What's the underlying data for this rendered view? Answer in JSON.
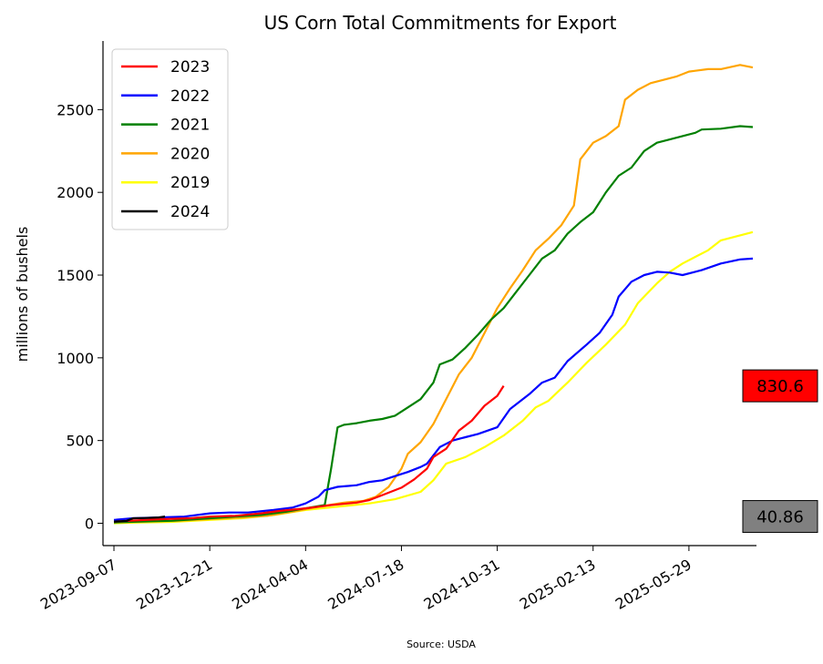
{
  "chart_data": {
    "type": "line",
    "title": "US Corn Total Commitments for Export",
    "xlabel": "",
    "ylabel": "millions of bushels",
    "source": "Source: USDA",
    "xlim": [
      "2023-08-26",
      "2025-08-11"
    ],
    "ylim": [
      -135,
      2915
    ],
    "x_ticks": [
      "2023-09-07",
      "2023-12-21",
      "2024-04-04",
      "2024-07-18",
      "2024-10-31",
      "2025-02-13",
      "2025-05-29"
    ],
    "y_ticks": [
      0,
      500,
      1000,
      1500,
      2000,
      2500
    ],
    "grid": false,
    "legend_placement": "top-left",
    "annotations": [
      {
        "text": "830.6",
        "value": 830.6,
        "background": "#ff0000"
      },
      {
        "text": "40.86",
        "value": 40.86,
        "background": "#808080"
      }
    ],
    "series": [
      {
        "name": "2023",
        "color": "#ff0000",
        "points": [
          [
            "2023-09-07",
            10
          ],
          [
            "2023-09-21",
            14
          ],
          [
            "2023-10-12",
            20
          ],
          [
            "2023-11-02",
            25
          ],
          [
            "2023-11-30",
            30
          ],
          [
            "2023-12-21",
            40
          ],
          [
            "2024-01-18",
            45
          ],
          [
            "2024-02-15",
            60
          ],
          [
            "2024-03-07",
            75
          ],
          [
            "2024-04-04",
            90
          ],
          [
            "2024-05-02",
            110
          ],
          [
            "2024-05-30",
            125
          ],
          [
            "2024-06-13",
            140
          ],
          [
            "2024-06-27",
            170
          ],
          [
            "2024-07-18",
            215
          ],
          [
            "2024-08-01",
            265
          ],
          [
            "2024-08-15",
            330
          ],
          [
            "2024-08-22",
            400
          ],
          [
            "2024-09-05",
            450
          ],
          [
            "2024-09-19",
            560
          ],
          [
            "2024-10-03",
            620
          ],
          [
            "2024-10-17",
            710
          ],
          [
            "2024-10-31",
            770
          ],
          [
            "2024-11-07",
            830.6
          ]
        ]
      },
      {
        "name": "2022",
        "color": "#0000ff",
        "points": [
          [
            "2023-09-07",
            20
          ],
          [
            "2023-09-28",
            30
          ],
          [
            "2023-10-26",
            35
          ],
          [
            "2023-11-23",
            40
          ],
          [
            "2023-12-21",
            60
          ],
          [
            "2024-01-11",
            65
          ],
          [
            "2024-02-01",
            65
          ],
          [
            "2024-02-29",
            80
          ],
          [
            "2024-03-21",
            95
          ],
          [
            "2024-04-04",
            120
          ],
          [
            "2024-04-18",
            160
          ],
          [
            "2024-04-25",
            200
          ],
          [
            "2024-05-09",
            220
          ],
          [
            "2024-05-30",
            230
          ],
          [
            "2024-06-13",
            250
          ],
          [
            "2024-06-27",
            260
          ],
          [
            "2024-07-11",
            285
          ],
          [
            "2024-07-25",
            310
          ],
          [
            "2024-08-08",
            340
          ],
          [
            "2024-08-15",
            360
          ],
          [
            "2024-08-29",
            460
          ],
          [
            "2024-09-12",
            500
          ],
          [
            "2024-09-26",
            520
          ],
          [
            "2024-10-10",
            540
          ],
          [
            "2024-10-31",
            580
          ],
          [
            "2024-11-14",
            690
          ],
          [
            "2024-12-05",
            780
          ],
          [
            "2024-12-19",
            850
          ],
          [
            "2025-01-02",
            880
          ],
          [
            "2025-01-16",
            980
          ],
          [
            "2025-02-06",
            1080
          ],
          [
            "2025-02-20",
            1150
          ],
          [
            "2025-03-06",
            1260
          ],
          [
            "2025-03-13",
            1370
          ],
          [
            "2025-03-27",
            1460
          ],
          [
            "2025-04-10",
            1500
          ],
          [
            "2025-04-24",
            1520
          ],
          [
            "2025-05-08",
            1515
          ],
          [
            "2025-05-22",
            1500
          ],
          [
            "2025-06-12",
            1530
          ],
          [
            "2025-07-03",
            1570
          ],
          [
            "2025-07-24",
            1595
          ],
          [
            "2025-08-07",
            1600
          ]
        ]
      },
      {
        "name": "2021",
        "color": "#008000",
        "points": [
          [
            "2023-09-07",
            5
          ],
          [
            "2023-10-05",
            10
          ],
          [
            "2023-11-09",
            15
          ],
          [
            "2023-12-21",
            30
          ],
          [
            "2024-01-18",
            40
          ],
          [
            "2024-02-15",
            50
          ],
          [
            "2024-03-14",
            70
          ],
          [
            "2024-04-04",
            90
          ],
          [
            "2024-04-25",
            110
          ],
          [
            "2024-05-02",
            330
          ],
          [
            "2024-05-09",
            580
          ],
          [
            "2024-05-16",
            595
          ],
          [
            "2024-05-30",
            605
          ],
          [
            "2024-06-13",
            620
          ],
          [
            "2024-06-27",
            630
          ],
          [
            "2024-07-11",
            650
          ],
          [
            "2024-07-25",
            700
          ],
          [
            "2024-08-08",
            750
          ],
          [
            "2024-08-22",
            850
          ],
          [
            "2024-08-29",
            960
          ],
          [
            "2024-09-12",
            990
          ],
          [
            "2024-09-26",
            1060
          ],
          [
            "2024-10-10",
            1140
          ],
          [
            "2024-10-24",
            1230
          ],
          [
            "2024-11-07",
            1300
          ],
          [
            "2024-11-21",
            1400
          ],
          [
            "2024-12-05",
            1500
          ],
          [
            "2024-12-19",
            1600
          ],
          [
            "2025-01-02",
            1650
          ],
          [
            "2025-01-16",
            1750
          ],
          [
            "2025-01-30",
            1820
          ],
          [
            "2025-02-13",
            1880
          ],
          [
            "2025-02-27",
            2000
          ],
          [
            "2025-03-13",
            2100
          ],
          [
            "2025-03-27",
            2150
          ],
          [
            "2025-04-10",
            2250
          ],
          [
            "2025-04-24",
            2300
          ],
          [
            "2025-05-08",
            2320
          ],
          [
            "2025-05-22",
            2340
          ],
          [
            "2025-06-05",
            2360
          ],
          [
            "2025-06-12",
            2380
          ],
          [
            "2025-07-03",
            2385
          ],
          [
            "2025-07-24",
            2400
          ],
          [
            "2025-08-07",
            2395
          ]
        ]
      },
      {
        "name": "2020",
        "color": "#ffa500",
        "points": [
          [
            "2023-09-07",
            5
          ],
          [
            "2023-10-12",
            10
          ],
          [
            "2023-11-16",
            15
          ],
          [
            "2023-12-21",
            25
          ],
          [
            "2024-01-25",
            35
          ],
          [
            "2024-02-22",
            45
          ],
          [
            "2024-03-21",
            70
          ],
          [
            "2024-04-18",
            100
          ],
          [
            "2024-05-16",
            125
          ],
          [
            "2024-06-06",
            135
          ],
          [
            "2024-06-20",
            160
          ],
          [
            "2024-07-04",
            220
          ],
          [
            "2024-07-18",
            330
          ],
          [
            "2024-07-25",
            420
          ],
          [
            "2024-08-08",
            490
          ],
          [
            "2024-08-22",
            600
          ],
          [
            "2024-09-05",
            750
          ],
          [
            "2024-09-19",
            900
          ],
          [
            "2024-10-03",
            1000
          ],
          [
            "2024-10-17",
            1150
          ],
          [
            "2024-10-31",
            1300
          ],
          [
            "2024-11-14",
            1420
          ],
          [
            "2024-11-28",
            1530
          ],
          [
            "2024-12-12",
            1650
          ],
          [
            "2024-12-26",
            1720
          ],
          [
            "2025-01-09",
            1800
          ],
          [
            "2025-01-23",
            1920
          ],
          [
            "2025-01-30",
            2200
          ],
          [
            "2025-02-13",
            2300
          ],
          [
            "2025-02-27",
            2340
          ],
          [
            "2025-03-13",
            2400
          ],
          [
            "2025-03-20",
            2560
          ],
          [
            "2025-04-03",
            2620
          ],
          [
            "2025-04-17",
            2660
          ],
          [
            "2025-05-01",
            2680
          ],
          [
            "2025-05-15",
            2700
          ],
          [
            "2025-05-29",
            2730
          ],
          [
            "2025-06-19",
            2745
          ],
          [
            "2025-07-03",
            2745
          ],
          [
            "2025-07-24",
            2770
          ],
          [
            "2025-08-07",
            2755
          ]
        ]
      },
      {
        "name": "2019",
        "color": "#ffff00",
        "points": [
          [
            "2023-09-07",
            0
          ],
          [
            "2023-10-05",
            5
          ],
          [
            "2023-11-09",
            8
          ],
          [
            "2023-12-21",
            20
          ],
          [
            "2024-01-25",
            30
          ],
          [
            "2024-02-29",
            50
          ],
          [
            "2024-04-04",
            80
          ],
          [
            "2024-05-09",
            100
          ],
          [
            "2024-06-13",
            120
          ],
          [
            "2024-07-11",
            145
          ],
          [
            "2024-08-08",
            190
          ],
          [
            "2024-08-22",
            260
          ],
          [
            "2024-09-05",
            360
          ],
          [
            "2024-09-26",
            400
          ],
          [
            "2024-10-17",
            460
          ],
          [
            "2024-11-07",
            530
          ],
          [
            "2024-11-28",
            620
          ],
          [
            "2024-12-12",
            700
          ],
          [
            "2024-12-26",
            740
          ],
          [
            "2025-01-16",
            850
          ],
          [
            "2025-02-06",
            970
          ],
          [
            "2025-02-27",
            1080
          ],
          [
            "2025-03-20",
            1200
          ],
          [
            "2025-04-03",
            1330
          ],
          [
            "2025-04-24",
            1450
          ],
          [
            "2025-05-08",
            1520
          ],
          [
            "2025-05-22",
            1570
          ],
          [
            "2025-06-05",
            1610
          ],
          [
            "2025-06-19",
            1650
          ],
          [
            "2025-07-03",
            1710
          ],
          [
            "2025-07-24",
            1740
          ],
          [
            "2025-08-07",
            1760
          ]
        ]
      },
      {
        "name": "2024",
        "color": "#000000",
        "points": [
          [
            "2023-09-07",
            10
          ],
          [
            "2023-09-21",
            15
          ],
          [
            "2023-09-28",
            30
          ],
          [
            "2023-10-12",
            32
          ],
          [
            "2023-10-26",
            35
          ],
          [
            "2023-11-02",
            40.86
          ]
        ]
      }
    ]
  }
}
